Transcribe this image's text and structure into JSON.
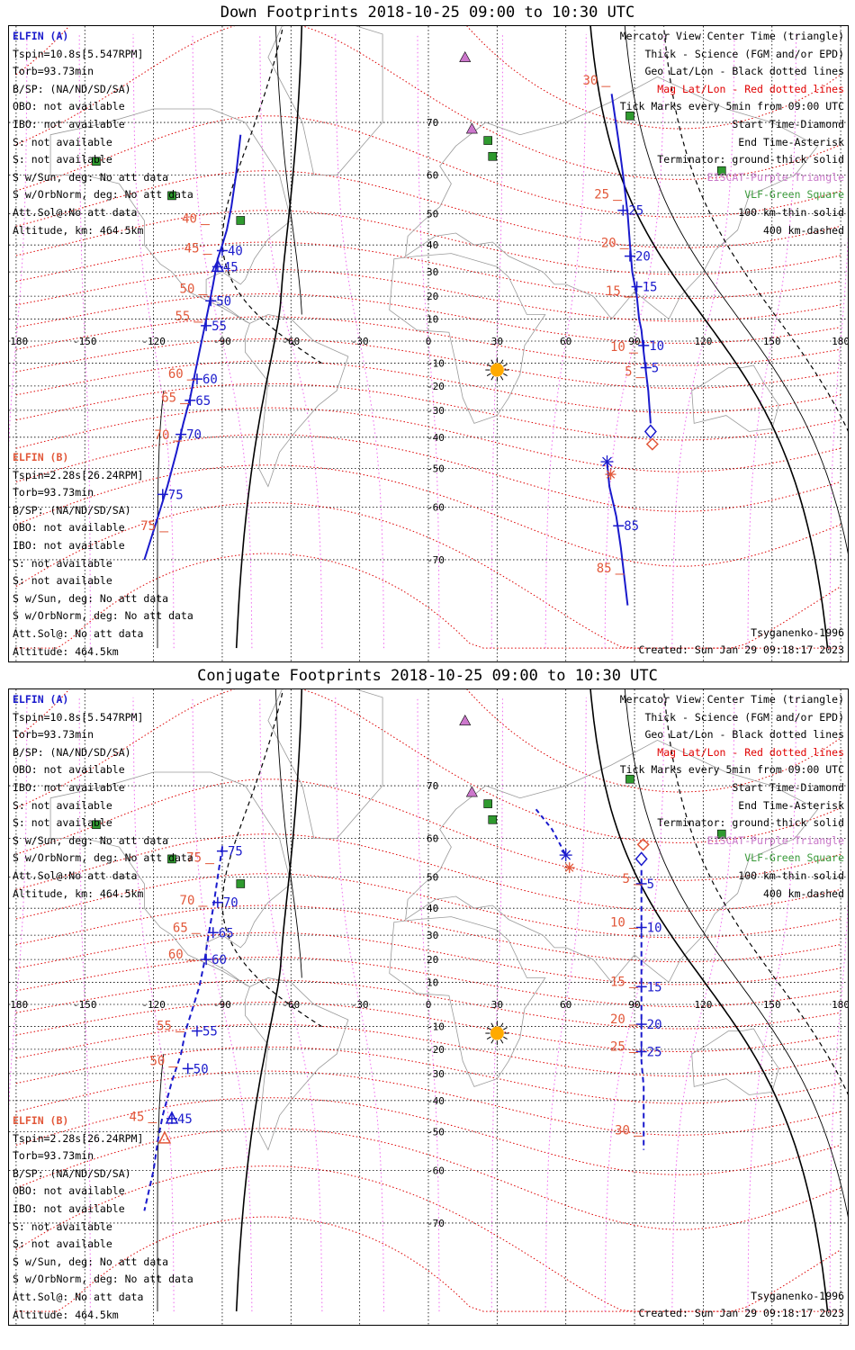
{
  "panels": [
    {
      "title": "Down Footprints 2018-10-25 09:00 to 10:30 UTC",
      "sat_a": {
        "name": "ELFIN (A)",
        "lines": [
          "Tspin=10.8s[5.547RPM]",
          "Torb=93.73min",
          "B/SP: (NA/ND/SD/SA)",
          "OBO: not available",
          "IBO: not available",
          "S: not available",
          "S: not available",
          "S w/Sun, deg: No att data",
          "S w/OrbNorm, deg: No att data",
          "Att.Sol@:No att data",
          "Altitude, km: 464.5km"
        ]
      },
      "sat_b": {
        "name": "ELFIN (B)",
        "lines": [
          "Tspin=2.28s[26.24RPM]",
          "Torb=93.73min",
          "B/SP: (NA/ND/SD/SA)",
          "OBO: not available",
          "IBO: not available",
          "S: not available",
          "S: not available",
          "S w/Sun, deg: No att data",
          "S w/OrbNorm, deg: No att data",
          "Att.Sol@: No att data",
          "Altitude: 464.5km"
        ]
      },
      "legend": [
        {
          "text": "Mercator View Center Time (triangle)",
          "color": "black"
        },
        {
          "text": "Thick - Science (FGM and/or EPD)",
          "color": "black"
        },
        {
          "text": "Geo Lat/Lon - Black dotted lines",
          "color": "black"
        },
        {
          "text": "Mag Lat/Lon - Red dotted lines",
          "color": "red"
        },
        {
          "text": "Tick Marks every 5min from 09:00 UTC",
          "color": "black"
        },
        {
          "text": "Start Time-Diamond",
          "color": "black"
        },
        {
          "text": "End Time-Asterisk",
          "color": "black"
        },
        {
          "text": "Terminator: ground-thick solid",
          "color": "black"
        },
        {
          "text": "EISCAT-Purple Triangle",
          "color": "purple"
        },
        {
          "text": "VLF-Green Square",
          "color": "green"
        },
        {
          "text": "100 km-thin solid",
          "color": "black"
        },
        {
          "text": "400 km-dashed",
          "color": "black"
        }
      ],
      "model": "Tsyganenko-1996",
      "created": "Created: Sun Jan 29 09:18:17 2023",
      "track_a": {
        "style": "solid",
        "points": [
          [
            -82,
            68
          ],
          [
            -84,
            60
          ],
          [
            -86,
            52
          ],
          [
            -88,
            45
          ],
          [
            -90,
            40
          ],
          [
            -92,
            35
          ],
          [
            -94,
            25
          ],
          [
            -96,
            15
          ],
          [
            -98,
            5
          ],
          [
            -100,
            -5
          ],
          [
            -102,
            -15
          ],
          [
            -104,
            -25
          ],
          [
            -107,
            -35
          ],
          [
            -110,
            -45
          ],
          [
            -114,
            -55
          ],
          [
            -118,
            -62
          ],
          [
            -124,
            -70
          ]
        ],
        "ticks": [
          {
            "lon": -90,
            "lat": 38,
            "label": "40"
          },
          {
            "lon": -92,
            "lat": 32,
            "label": "45"
          },
          {
            "lon": -95,
            "lat": 18,
            "label": "50"
          },
          {
            "lon": -97,
            "lat": 7,
            "label": "55"
          },
          {
            "lon": -101,
            "lat": -17,
            "label": "60"
          },
          {
            "lon": -104,
            "lat": -26,
            "label": "65"
          },
          {
            "lon": -108,
            "lat": -39,
            "label": "70"
          },
          {
            "lon": -116,
            "lat": -57,
            "label": "75"
          }
        ],
        "center": {
          "lon": -92,
          "lat": 32
        }
      },
      "track_b": {
        "style": "solid",
        "points": [
          [
            80,
            74
          ],
          [
            83,
            67
          ],
          [
            85,
            60
          ],
          [
            87,
            50
          ],
          [
            88,
            40
          ],
          [
            89,
            30
          ],
          [
            91,
            20
          ],
          [
            92,
            10
          ],
          [
            93,
            5
          ],
          [
            94,
            -5
          ],
          [
            95,
            -14
          ],
          [
            96,
            -22
          ],
          [
            97,
            -35
          ]
        ],
        "ticks": [
          {
            "lon": 85,
            "lat": 51,
            "label": "25"
          },
          {
            "lon": 88,
            "lat": 36,
            "label": "20"
          },
          {
            "lon": 91,
            "lat": 24,
            "label": "15"
          },
          {
            "lon": 94,
            "lat": -2,
            "label": "10"
          },
          {
            "lon": 95,
            "lat": -12,
            "label": "5"
          }
        ],
        "start": {
          "lon": 97,
          "lat": -38
        },
        "end": null
      },
      "track_c": {
        "points": [
          [
            78,
            -48
          ],
          [
            79,
            -55
          ],
          [
            82,
            -62
          ],
          [
            84,
            -68
          ],
          [
            87,
            -76
          ]
        ],
        "ticks": [
          {
            "lon": 83,
            "lat": -64,
            "label": "85"
          }
        ],
        "end": {
          "lon": 78,
          "lat": -48
        }
      },
      "mag_labels_a": [
        {
          "lon": -101,
          "lat": 47,
          "text": "40"
        },
        {
          "lon": -100,
          "lat": 37,
          "text": "45"
        },
        {
          "lon": -102,
          "lat": 21,
          "text": "50"
        },
        {
          "lon": -104,
          "lat": 9,
          "text": "55"
        },
        {
          "lon": -107,
          "lat": -17,
          "text": "60"
        },
        {
          "lon": -110,
          "lat": -27,
          "text": "65"
        },
        {
          "lon": -113,
          "lat": -41,
          "text": "70"
        },
        {
          "lon": -119,
          "lat": -65,
          "text": "75"
        }
      ],
      "mag_labels_b": [
        {
          "lon": 74,
          "lat": 75,
          "text": "30"
        },
        {
          "lon": 79,
          "lat": 54,
          "text": "25"
        },
        {
          "lon": 82,
          "lat": 39,
          "text": "20"
        },
        {
          "lon": 84,
          "lat": 20,
          "text": "15"
        },
        {
          "lon": 86,
          "lat": -5,
          "text": "10"
        },
        {
          "lon": 89,
          "lat": -16,
          "text": "5"
        },
        {
          "lon": 80,
          "lat": -72,
          "text": "85"
        }
      ]
    },
    {
      "title": "Conjugate Footprints 2018-10-25 09:00 to 10:30 UTC",
      "sat_a": {
        "name": "ELFIN (A)",
        "lines": [
          "Tspin=10.8s[5.547RPM]",
          "Torb=93.73min",
          "B/SP: (NA/ND/SD/SA)",
          "OBO: not available",
          "IBO: not available",
          "S: not available",
          "S: not available",
          "S w/Sun, deg: No att data",
          "S w/OrbNorm, deg: No att data",
          "Att.Sol@:No att data",
          "Altitude, km: 464.5km"
        ]
      },
      "sat_b": {
        "name": "ELFIN (B)",
        "lines": [
          "Tspin=2.28s[26.24RPM]",
          "Torb=93.73min",
          "B/SP: (NA/ND/SD/SA)",
          "OBO: not available",
          "IBO: not available",
          "S: not available",
          "S: not available",
          "S w/Sun, deg: No att data",
          "S w/OrbNorm, deg: No att data",
          "Att.Sol@: No att data",
          "Altitude: 464.5km"
        ]
      },
      "legend": [
        {
          "text": "Mercator View Center Time (triangle)",
          "color": "black"
        },
        {
          "text": "Thick - Science (FGM and/or EPD)",
          "color": "black"
        },
        {
          "text": "Geo Lat/Lon - Black dotted lines",
          "color": "black"
        },
        {
          "text": "Mag Lat/Lon - Red dotted lines",
          "color": "red"
        },
        {
          "text": "Tick Marks every 5min from 09:00 UTC",
          "color": "black"
        },
        {
          "text": "Start Time-Diamond",
          "color": "black"
        },
        {
          "text": "End Time-Asterisk",
          "color": "black"
        },
        {
          "text": "Terminator: ground-thick solid",
          "color": "black"
        },
        {
          "text": "EISCAT-Purple Triangle",
          "color": "purple"
        },
        {
          "text": "VLF-Green Square",
          "color": "green"
        },
        {
          "text": "100 km-thin solid",
          "color": "black"
        },
        {
          "text": "400 km-dashed",
          "color": "black"
        }
      ],
      "model": "Tsyganenko-1996",
      "created": "Created: Sun Jan 29 09:18:17 2023",
      "track_a": {
        "style": "dashed",
        "points": [
          [
            -90,
            58
          ],
          [
            -92,
            50
          ],
          [
            -94,
            40
          ],
          [
            -96,
            30
          ],
          [
            -98,
            18
          ],
          [
            -100,
            8
          ],
          [
            -103,
            -2
          ],
          [
            -106,
            -12
          ],
          [
            -108,
            -22
          ],
          [
            -112,
            -33
          ],
          [
            -116,
            -45
          ],
          [
            -118,
            -52
          ],
          [
            -120,
            -60
          ],
          [
            -124,
            -68
          ]
        ],
        "ticks": [
          {
            "lon": -90,
            "lat": 57,
            "label": "75"
          },
          {
            "lon": -92,
            "lat": 42,
            "label": "70"
          },
          {
            "lon": -94,
            "lat": 31,
            "label": "65"
          },
          {
            "lon": -97,
            "lat": 20,
            "label": "60"
          },
          {
            "lon": -101,
            "lat": -12,
            "label": "55"
          },
          {
            "lon": -105,
            "lat": -28,
            "label": "50"
          },
          {
            "lon": -112,
            "lat": -46,
            "label": "45"
          }
        ],
        "center": {
          "lon": -112,
          "lat": -46
        }
      },
      "track_b": {
        "style": "dashed",
        "points": [
          [
            93,
            52
          ],
          [
            93,
            45
          ],
          [
            93,
            35
          ],
          [
            93,
            25
          ],
          [
            93,
            15
          ],
          [
            93,
            5
          ],
          [
            93,
            -5
          ],
          [
            93,
            -15
          ],
          [
            93,
            -25
          ],
          [
            94,
            -35
          ],
          [
            94,
            -45
          ],
          [
            94,
            -55
          ]
        ],
        "ticks": [
          {
            "lon": 93,
            "lat": 48,
            "label": "5"
          },
          {
            "lon": 93,
            "lat": 33,
            "label": "10"
          },
          {
            "lon": 93,
            "lat": 8,
            "label": "15"
          },
          {
            "lon": 93,
            "lat": -9,
            "label": "20"
          },
          {
            "lon": 93,
            "lat": -21,
            "label": "25"
          }
        ],
        "start": {
          "lon": 93,
          "lat": 55
        },
        "end": null
      },
      "track_c": {
        "points": [
          [
            47,
            66
          ],
          [
            54,
            62
          ],
          [
            60,
            56
          ]
        ],
        "ticks": [],
        "end": {
          "lon": 60,
          "lat": 56
        }
      },
      "mag_labels_a": [
        {
          "lon": -99,
          "lat": 54,
          "text": "75"
        },
        {
          "lon": -102,
          "lat": 41,
          "text": "70"
        },
        {
          "lon": -105,
          "lat": 31,
          "text": "65"
        },
        {
          "lon": -107,
          "lat": 20,
          "text": "60"
        },
        {
          "lon": -112,
          "lat": -12,
          "text": "55"
        },
        {
          "lon": -115,
          "lat": -27,
          "text": "50"
        },
        {
          "lon": -124,
          "lat": -47,
          "text": "45"
        }
      ],
      "mag_labels_b": [
        {
          "lon": 88,
          "lat": 48,
          "text": "5"
        },
        {
          "lon": 86,
          "lat": 33,
          "text": "10"
        },
        {
          "lon": 86,
          "lat": 8,
          "text": "15"
        },
        {
          "lon": 86,
          "lat": -9,
          "text": "20"
        },
        {
          "lon": 86,
          "lat": -21,
          "text": "25"
        },
        {
          "lon": 88,
          "lat": -51,
          "text": "30"
        }
      ],
      "start_b_extra": {
        "lon": 93,
        "lat": 55
      }
    }
  ],
  "map": {
    "lon_ticks": [
      "-180",
      "-150",
      "-120",
      "-90",
      "-60",
      "-30",
      "0",
      "30",
      "60",
      "90",
      "120",
      "150",
      "180"
    ],
    "lat_ticks": [
      "70",
      "60",
      "50",
      "40",
      "30",
      "20",
      "10",
      "0",
      "-10",
      "-20",
      "-30",
      "-40",
      "-50",
      "-60",
      "-70"
    ],
    "sun": {
      "lon": 30,
      "lat": -13
    },
    "eiscat": [
      {
        "lon": 16,
        "lat": 78
      },
      {
        "lon": 19,
        "lat": 69
      }
    ],
    "vlf": [
      {
        "lon": -145,
        "lat": 63
      },
      {
        "lon": -112,
        "lat": 55
      },
      {
        "lon": -82,
        "lat": 48
      },
      {
        "lon": 26,
        "lat": 67
      },
      {
        "lon": 28,
        "lat": 64
      },
      {
        "lon": 88,
        "lat": 71
      },
      {
        "lon": 128,
        "lat": 61
      }
    ],
    "colors": {
      "track_a": "#1a1acc",
      "track_b": "#1a1acc",
      "mag": "#e2583a",
      "geo_dots": "#ee66ee",
      "red_dots": "#dd0000",
      "sun": "#ffaa00",
      "eiscat": "#cc77cc",
      "vlf": "#2f9a2f"
    }
  }
}
